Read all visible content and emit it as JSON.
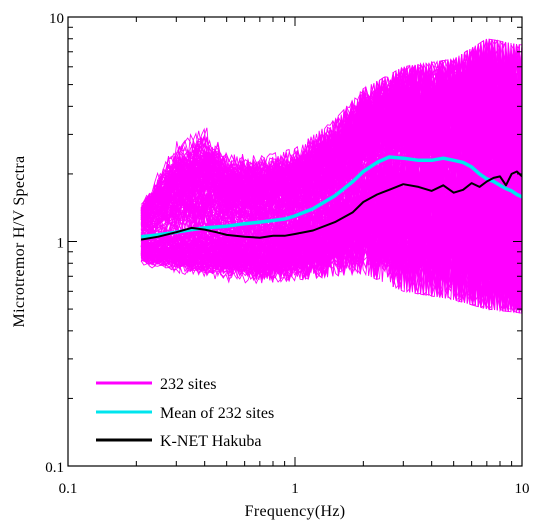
{
  "chart_data": {
    "type": "line",
    "title": "",
    "xlabel": "Frequency(Hz)",
    "ylabel": "Microtremor H/V Spectra",
    "xscale": "log",
    "yscale": "log",
    "xlim": [
      0.1,
      10
    ],
    "ylim": [
      0.1,
      10
    ],
    "x_ticks": [
      0.1,
      1,
      10
    ],
    "x_tick_labels": [
      "0.1",
      "1",
      "10"
    ],
    "y_ticks": [
      0.1,
      1,
      10
    ],
    "y_tick_labels": [
      "0.1",
      "1",
      "10"
    ],
    "grid": false,
    "legend_position": "bottom-left",
    "colors": {
      "sites": "#ff00ff",
      "mean": "#00e5ee",
      "hakuba": "#000000"
    },
    "series": [
      {
        "name": "232 sites",
        "color": "#ff00ff",
        "count": 232,
        "envelope_x": [
          0.21,
          0.3,
          0.4,
          0.5,
          0.7,
          1.0,
          1.5,
          2.0,
          3.0,
          5.0,
          7.0,
          10.0
        ],
        "envelope_upper": [
          1.5,
          2.9,
          3.3,
          2.5,
          2.4,
          2.6,
          3.5,
          4.8,
          6.0,
          6.5,
          8.0,
          7.5
        ],
        "envelope_lower": [
          0.78,
          0.72,
          0.7,
          0.66,
          0.65,
          0.67,
          0.7,
          0.72,
          0.6,
          0.55,
          0.5,
          0.48
        ]
      },
      {
        "name": "Mean of 232 sites",
        "color": "#00e5ee",
        "x": [
          0.21,
          0.25,
          0.3,
          0.35,
          0.4,
          0.5,
          0.6,
          0.7,
          0.8,
          0.9,
          1.0,
          1.2,
          1.5,
          1.8,
          2.0,
          2.3,
          2.6,
          3.0,
          3.5,
          4.0,
          4.5,
          5.0,
          5.5,
          6.0,
          6.5,
          7.0,
          7.5,
          8.0,
          8.5,
          9.0,
          9.5,
          10.0
        ],
        "y": [
          1.05,
          1.07,
          1.1,
          1.13,
          1.15,
          1.17,
          1.2,
          1.22,
          1.24,
          1.26,
          1.3,
          1.4,
          1.6,
          1.85,
          2.05,
          2.25,
          2.38,
          2.35,
          2.3,
          2.3,
          2.35,
          2.3,
          2.25,
          2.15,
          2.0,
          1.9,
          1.85,
          1.78,
          1.72,
          1.68,
          1.62,
          1.58
        ]
      },
      {
        "name": "K-NET Hakuba",
        "color": "#000000",
        "x": [
          0.21,
          0.25,
          0.3,
          0.35,
          0.4,
          0.45,
          0.5,
          0.6,
          0.7,
          0.8,
          0.9,
          1.0,
          1.2,
          1.5,
          1.8,
          2.0,
          2.3,
          2.6,
          3.0,
          3.5,
          4.0,
          4.5,
          5.0,
          5.5,
          6.0,
          6.5,
          7.0,
          7.5,
          8.0,
          8.5,
          9.0,
          9.5,
          10.0
        ],
        "y": [
          1.02,
          1.05,
          1.1,
          1.15,
          1.13,
          1.1,
          1.07,
          1.05,
          1.04,
          1.06,
          1.06,
          1.08,
          1.12,
          1.22,
          1.35,
          1.5,
          1.62,
          1.7,
          1.8,
          1.75,
          1.68,
          1.78,
          1.65,
          1.7,
          1.82,
          1.75,
          1.85,
          1.92,
          1.95,
          1.78,
          2.0,
          2.05,
          1.95
        ]
      }
    ]
  }
}
